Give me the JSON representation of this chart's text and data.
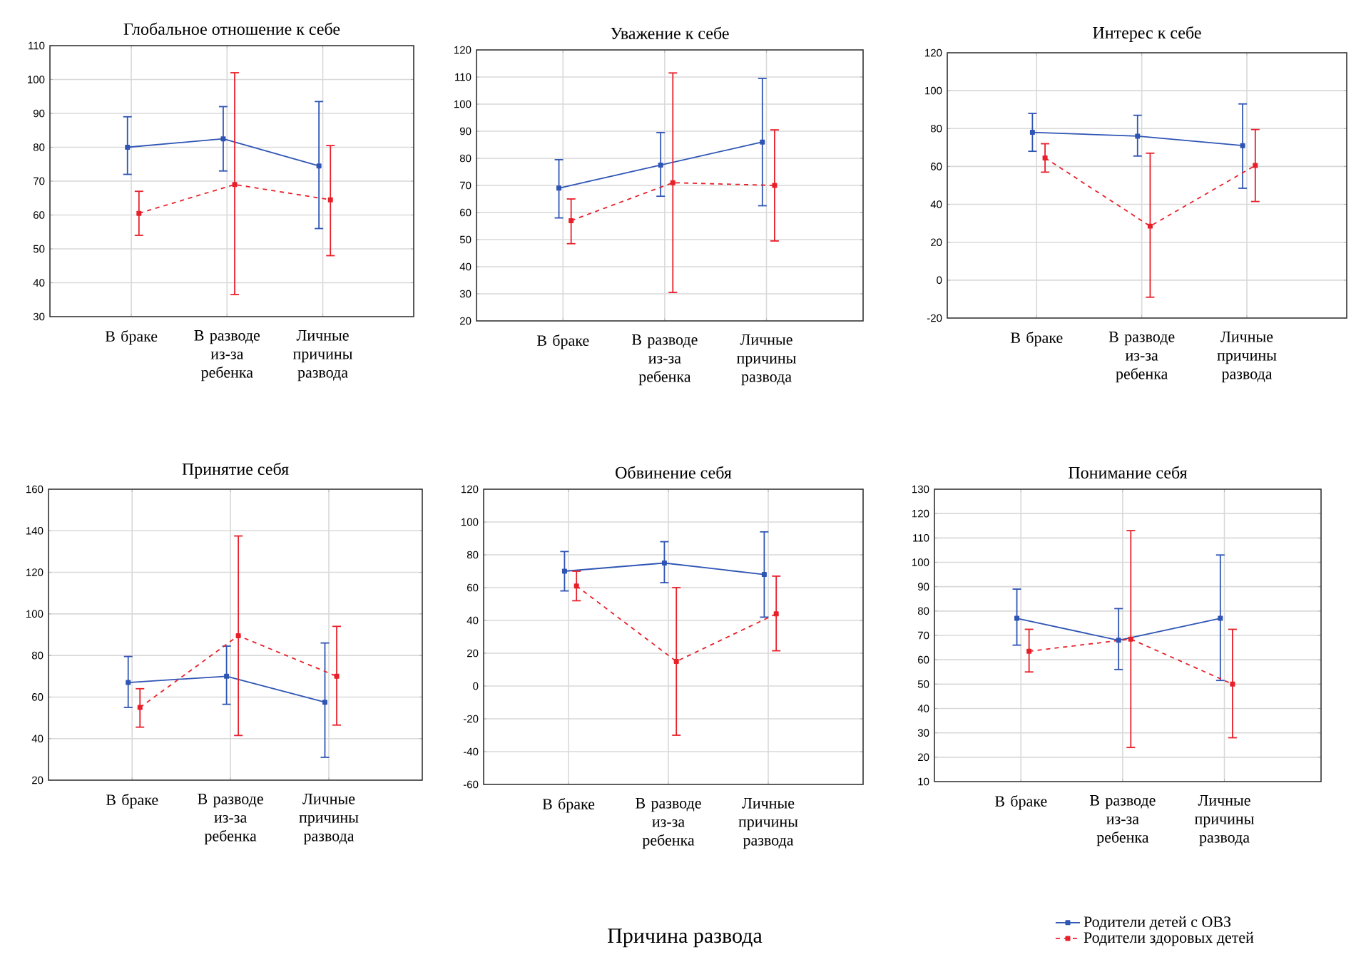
{
  "chart_data": [
    {
      "type": "line",
      "title": "Глобальное отношение к себе",
      "categories": [
        "В браке",
        "В разводе из-за ребенка",
        "Личные причины развода"
      ],
      "ylim": [
        30,
        110
      ],
      "yticks": [
        30,
        40,
        50,
        60,
        70,
        80,
        90,
        100,
        110
      ],
      "grid": true,
      "marker": "square",
      "series": [
        {
          "color": "#2f55b4",
          "line_style": "solid",
          "values": [
            80,
            82.5,
            74.5
          ],
          "errors": [
            [
              72,
              89
            ],
            [
              73,
              92
            ],
            [
              56,
              93.5
            ]
          ]
        },
        {
          "color": "#e8202a",
          "line_style": "dashed",
          "values": [
            60.5,
            69,
            64.5
          ],
          "errors": [
            [
              54,
              67
            ],
            [
              36.5,
              102
            ],
            [
              48,
              80.5
            ]
          ]
        }
      ]
    },
    {
      "type": "line",
      "title": "Уважение к себе",
      "categories": [
        "В браке",
        "В разводе из-за ребенка",
        "Личные причины развода"
      ],
      "ylim": [
        20,
        120
      ],
      "yticks": [
        20,
        30,
        40,
        50,
        60,
        70,
        80,
        90,
        100,
        110,
        120
      ],
      "grid": true,
      "marker": "square",
      "series": [
        {
          "color": "#2f55b4",
          "line_style": "solid",
          "values": [
            69,
            77.5,
            86
          ],
          "errors": [
            [
              58,
              79.5
            ],
            [
              66,
              89.5
            ],
            [
              62.5,
              109.5
            ]
          ]
        },
        {
          "color": "#e8202a",
          "line_style": "dashed",
          "values": [
            57,
            71,
            70
          ],
          "errors": [
            [
              48.5,
              65
            ],
            [
              30.5,
              111.5
            ],
            [
              49.5,
              90.5
            ]
          ]
        }
      ]
    },
    {
      "type": "line",
      "title": "Интерес к себе",
      "categories": [
        "В браке",
        "В разводе из-за ребенка",
        "Личные причины развода"
      ],
      "ylim": [
        -20,
        120
      ],
      "yticks": [
        -20,
        0,
        20,
        40,
        60,
        80,
        100,
        120
      ],
      "grid": true,
      "marker": "square",
      "series": [
        {
          "color": "#2f55b4",
          "line_style": "solid",
          "values": [
            78,
            76,
            71
          ],
          "errors": [
            [
              68,
              88
            ],
            [
              65.5,
              87
            ],
            [
              48.5,
              93
            ]
          ]
        },
        {
          "color": "#e8202a",
          "line_style": "dashed",
          "values": [
            64.5,
            28.5,
            60.5
          ],
          "errors": [
            [
              57,
              72
            ],
            [
              -9,
              67
            ],
            [
              41.5,
              79.5
            ]
          ]
        }
      ]
    },
    {
      "type": "line",
      "title": "Принятие себя",
      "categories": [
        "В браке",
        "В разводе из-за ребенка",
        "Личные причины развода"
      ],
      "ylim": [
        20,
        160
      ],
      "yticks": [
        20,
        40,
        60,
        80,
        100,
        120,
        140,
        160
      ],
      "grid": true,
      "marker": "square",
      "series": [
        {
          "color": "#2f55b4",
          "line_style": "solid",
          "values": [
            67,
            70,
            57.5
          ],
          "errors": [
            [
              55,
              79.5
            ],
            [
              56.5,
              84.5
            ],
            [
              31,
              86
            ]
          ]
        },
        {
          "color": "#e8202a",
          "line_style": "dashed",
          "values": [
            55,
            89.5,
            70
          ],
          "errors": [
            [
              45.5,
              64
            ],
            [
              41.5,
              137.5
            ],
            [
              46.5,
              94
            ]
          ]
        }
      ]
    },
    {
      "type": "line",
      "title": "Обвинение себя",
      "xlabel": "Причина развода",
      "categories": [
        "В браке",
        "В разводе из-за ребенка",
        "Личные причины развода"
      ],
      "ylim": [
        -60,
        120
      ],
      "yticks": [
        -60,
        -40,
        -20,
        0,
        20,
        40,
        60,
        80,
        100,
        120
      ],
      "grid": true,
      "marker": "square",
      "series": [
        {
          "color": "#2f55b4",
          "line_style": "solid",
          "values": [
            70,
            75,
            68
          ],
          "errors": [
            [
              58,
              82
            ],
            [
              63,
              88
            ],
            [
              42,
              94
            ]
          ]
        },
        {
          "color": "#e8202a",
          "line_style": "dashed",
          "values": [
            61,
            15,
            44
          ],
          "errors": [
            [
              52,
              70
            ],
            [
              -30,
              60
            ],
            [
              21.5,
              67
            ]
          ]
        }
      ]
    },
    {
      "type": "line",
      "title": "Понимание себя",
      "categories": [
        "В браке",
        "В разводе из-за ребенка",
        "Личные причины развода"
      ],
      "ylim": [
        10,
        130
      ],
      "yticks": [
        10,
        20,
        30,
        40,
        50,
        60,
        70,
        80,
        90,
        100,
        110,
        120,
        130
      ],
      "grid": true,
      "marker": "square",
      "legend": "bottom right",
      "series": [
        {
          "name": "Родители детей с ОВЗ",
          "color": "#2f55b4",
          "line_style": "solid",
          "values": [
            77,
            68,
            77
          ],
          "errors": [
            [
              66,
              89
            ],
            [
              56,
              81
            ],
            [
              51.5,
              103
            ]
          ]
        },
        {
          "name": "Родители здоровых детей",
          "color": "#e8202a",
          "line_style": "dashed",
          "values": [
            63.5,
            68.5,
            50
          ],
          "errors": [
            [
              55,
              72.5
            ],
            [
              24,
              113
            ],
            [
              28,
              72.5
            ]
          ]
        }
      ]
    }
  ]
}
